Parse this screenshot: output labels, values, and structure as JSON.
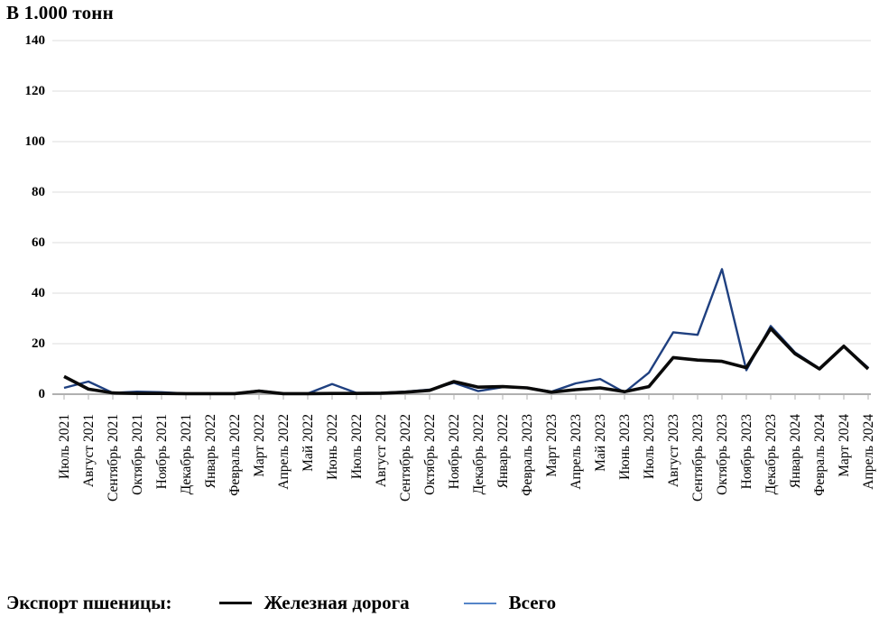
{
  "title": "В 1.000 тонн",
  "legend": {
    "prefix": "Экспорт пшеницы:",
    "items": [
      {
        "label": "Железная дорога",
        "color": "#000000"
      },
      {
        "label": "Всего",
        "color": "#5585c8"
      }
    ]
  },
  "chart_data": {
    "type": "line",
    "title": "В 1.000 тонн",
    "xlabel": "",
    "ylabel": "В 1.000 тонн",
    "ylim": [
      0,
      140
    ],
    "yticks": [
      0,
      20,
      40,
      60,
      80,
      100,
      120,
      140
    ],
    "grid": true,
    "legend_position": "bottom",
    "categories": [
      "Июль 2021",
      "Август 2021",
      "Сентябрь 2021",
      "Октябрь 2021",
      "Ноябрь 2021",
      "Декабрь 2021",
      "Январь 2022",
      "Февраль 2022",
      "Март 2022",
      "Апрель 2022",
      "Май 2022",
      "Июнь 2022",
      "Июль 2022",
      "Август 2022",
      "Сентябрь 2022",
      "Октябрь 2022",
      "Ноябрь 2022",
      "Декабрь 2022",
      "Январь 2022",
      "Февраль 2023",
      "Март 2023",
      "Апрель 2023",
      "Май 2023",
      "Июнь 2023",
      "Июль 2023",
      "Август 2023",
      "Сентябрь 2023",
      "Октябрь 2023",
      "Ноябрь 2023",
      "Декабрь 2023",
      "Январь 2024",
      "Февраль 2024",
      "Март 2024",
      "Апрель 2024"
    ],
    "series": [
      {
        "name": "Железная дорога",
        "color": "#0a0a0a",
        "values": [
          7,
          2,
          0.5,
          0.3,
          0.3,
          0.2,
          0.2,
          0.2,
          1.2,
          0.2,
          0.2,
          0.3,
          0.3,
          0.4,
          0.8,
          1.5,
          5,
          2.8,
          3,
          2.5,
          0.8,
          1.8,
          2.5,
          1,
          3,
          14.5,
          13.5,
          13,
          10.5,
          26,
          16,
          10,
          19,
          10
        ]
      },
      {
        "name": "Всего",
        "color": "#1f4080",
        "values": [
          2.5,
          5,
          0.5,
          1,
          0.8,
          0.3,
          0.3,
          0.3,
          1.4,
          0.3,
          0.3,
          4,
          0.5,
          0.5,
          1,
          1.8,
          4.5,
          1.2,
          2.8,
          2.6,
          1,
          4.3,
          6,
          0.7,
          8.5,
          24.5,
          23.5,
          49.5,
          9.5,
          27,
          16.5,
          10.2,
          19,
          10.5
        ]
      }
    ]
  }
}
